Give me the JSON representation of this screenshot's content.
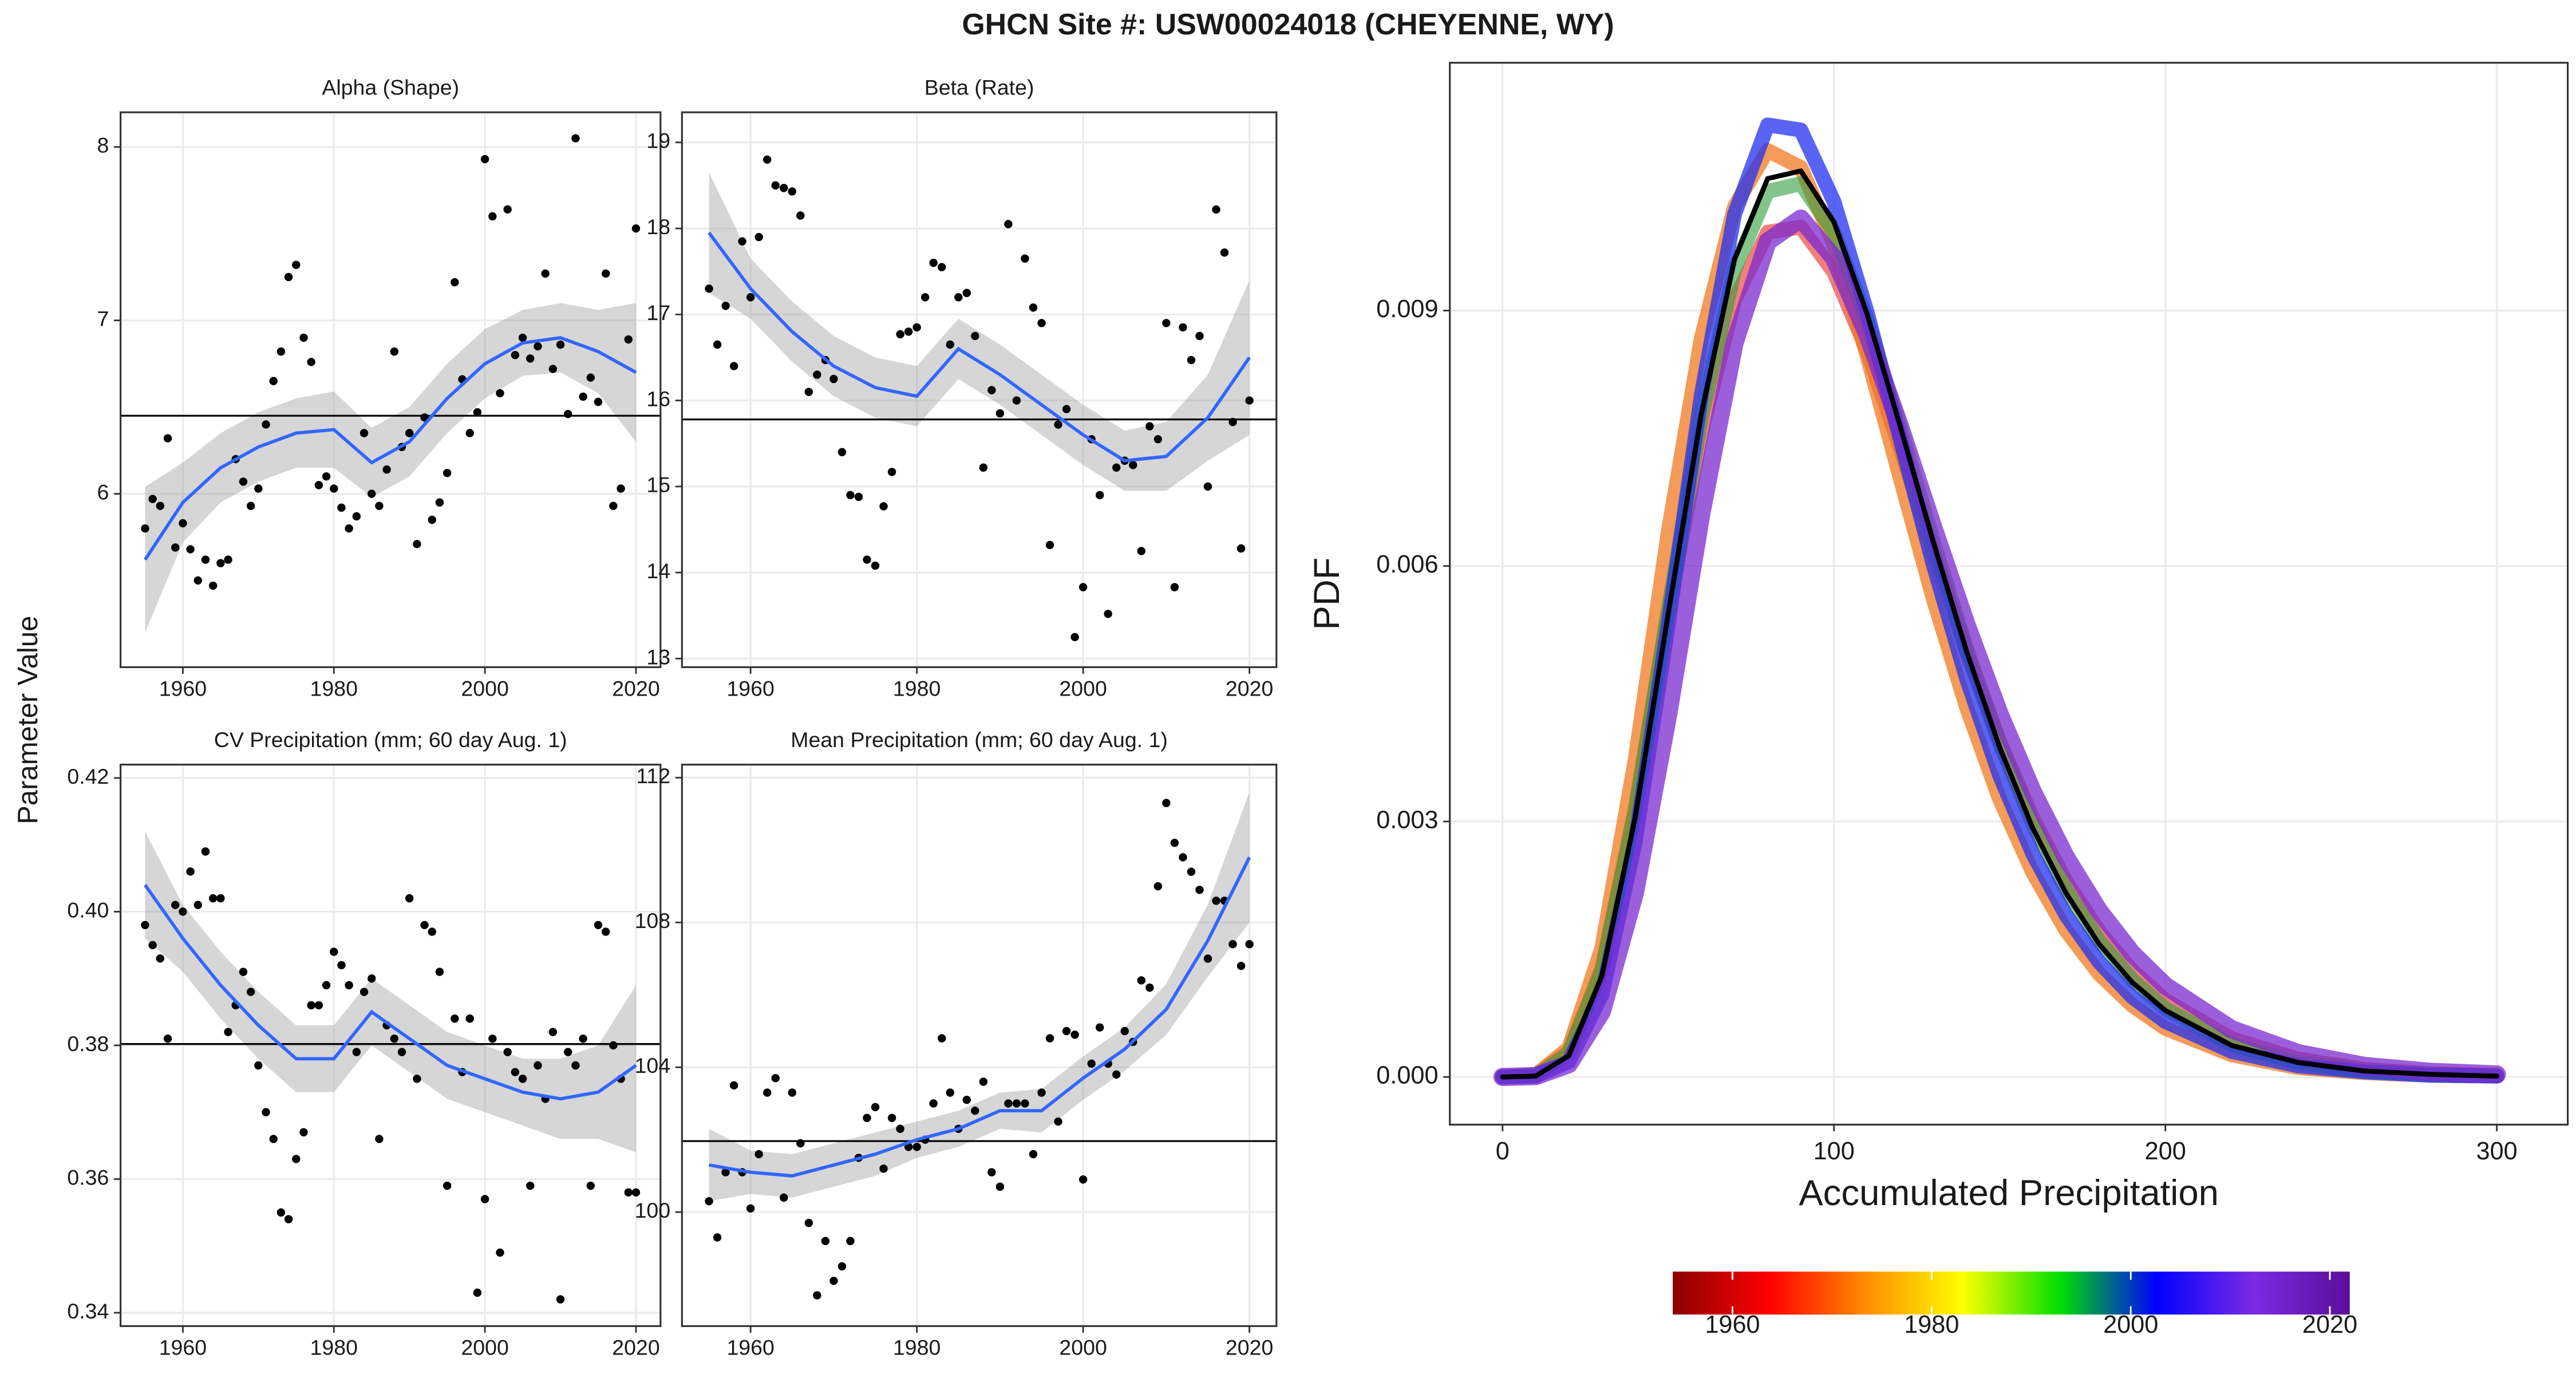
{
  "title": "GHCN Site #: USW00024018 (CHEYENNE, WY)",
  "y_label": "Parameter Value",
  "chart_data": [
    {
      "type": "scatter",
      "title": "Alpha (Shape)",
      "x": [
        1955,
        1956,
        1957,
        1958,
        1959,
        1960,
        1961,
        1962,
        1963,
        1964,
        1965,
        1966,
        1967,
        1968,
        1969,
        1970,
        1971,
        1972,
        1973,
        1974,
        1975,
        1976,
        1977,
        1978,
        1979,
        1980,
        1981,
        1982,
        1983,
        1984,
        1985,
        1986,
        1987,
        1988,
        1989,
        1990,
        1991,
        1992,
        1993,
        1994,
        1995,
        1996,
        1997,
        1998,
        1999,
        2000,
        2001,
        2002,
        2003,
        2004,
        2005,
        2006,
        2007,
        2008,
        2009,
        2010,
        2011,
        2012,
        2013,
        2014,
        2015,
        2016,
        2017,
        2018,
        2019,
        2020
      ],
      "values": [
        5.8,
        5.97,
        5.93,
        6.32,
        5.69,
        5.83,
        5.68,
        5.5,
        5.62,
        5.47,
        5.6,
        5.62,
        6.2,
        6.07,
        5.93,
        6.03,
        6.4,
        6.65,
        6.82,
        7.25,
        7.32,
        6.9,
        6.76,
        6.05,
        6.1,
        6.03,
        5.92,
        5.8,
        5.87,
        6.35,
        6.0,
        5.93,
        6.14,
        6.82,
        6.27,
        6.35,
        5.71,
        6.44,
        5.85,
        5.95,
        6.12,
        7.22,
        6.66,
        6.35,
        6.47,
        7.93,
        7.6,
        6.58,
        7.64,
        6.8,
        6.9,
        6.78,
        6.85,
        7.27,
        6.72,
        6.86,
        6.46,
        8.05,
        6.56,
        6.67,
        6.53,
        7.27,
        5.93,
        6.03,
        6.89,
        7.53
      ],
      "color": "#000000",
      "smooth": {
        "x": [
          1955,
          1960,
          1965,
          1970,
          1975,
          1980,
          1985,
          1990,
          1995,
          2000,
          2005,
          2010,
          2015,
          2020
        ],
        "values": [
          5.62,
          5.95,
          6.15,
          6.27,
          6.35,
          6.37,
          6.18,
          6.3,
          6.55,
          6.75,
          6.87,
          6.9,
          6.82,
          6.7
        ],
        "lower": [
          5.2,
          5.72,
          5.95,
          6.07,
          6.15,
          6.15,
          5.98,
          6.1,
          6.35,
          6.55,
          6.68,
          6.7,
          6.58,
          6.3
        ],
        "upper": [
          6.04,
          6.18,
          6.35,
          6.47,
          6.55,
          6.59,
          6.38,
          6.5,
          6.75,
          6.95,
          7.06,
          7.1,
          7.06,
          7.1
        ],
        "color": "#3366ff",
        "band_color": "#999999"
      },
      "hline": 6.45,
      "hline_color": "#000000",
      "xlim": [
        1951.75,
        2023.25
      ],
      "ylim": [
        5.0,
        8.2
      ],
      "xticks": [
        1960,
        1980,
        2000,
        2020
      ],
      "yticks": [
        6,
        7,
        8
      ],
      "grid": true
    },
    {
      "type": "scatter",
      "title": "Beta (Rate)",
      "x": [
        1955,
        1956,
        1957,
        1958,
        1959,
        1960,
        1961,
        1962,
        1963,
        1964,
        1965,
        1966,
        1967,
        1968,
        1969,
        1970,
        1971,
        1972,
        1973,
        1974,
        1975,
        1976,
        1977,
        1978,
        1979,
        1980,
        1981,
        1982,
        1983,
        1984,
        1985,
        1986,
        1987,
        1988,
        1989,
        1990,
        1991,
        1992,
        1993,
        1994,
        1995,
        1996,
        1997,
        1998,
        1999,
        2000,
        2001,
        2002,
        2003,
        2004,
        2005,
        2006,
        2007,
        2008,
        2009,
        2010,
        2011,
        2012,
        2013,
        2014,
        2015,
        2016,
        2017,
        2018,
        2019,
        2020
      ],
      "values": [
        17.3,
        16.65,
        17.1,
        16.4,
        17.85,
        17.2,
        17.9,
        18.8,
        18.5,
        18.47,
        18.43,
        18.15,
        16.1,
        16.3,
        16.47,
        16.25,
        15.4,
        14.9,
        14.88,
        14.15,
        14.08,
        14.77,
        15.17,
        16.77,
        16.8,
        16.85,
        17.2,
        17.6,
        17.55,
        16.65,
        17.2,
        17.25,
        16.75,
        15.22,
        16.12,
        15.85,
        18.05,
        16.0,
        17.65,
        17.08,
        16.9,
        14.32,
        15.72,
        15.9,
        13.25,
        13.83,
        15.55,
        14.9,
        13.52,
        15.22,
        15.3,
        15.25,
        14.25,
        15.7,
        15.55,
        16.9,
        13.83,
        16.85,
        16.47,
        16.75,
        15.0,
        18.22,
        17.72,
        15.75,
        14.28,
        16.0
      ],
      "color": "#000000",
      "smooth": {
        "x": [
          1955,
          1960,
          1965,
          1970,
          1975,
          1980,
          1985,
          1990,
          1995,
          2000,
          2005,
          2010,
          2015,
          2020
        ],
        "values": [
          17.95,
          17.3,
          16.8,
          16.4,
          16.15,
          16.05,
          16.6,
          16.3,
          15.95,
          15.6,
          15.3,
          15.35,
          15.8,
          16.5
        ],
        "lower": [
          17.25,
          16.95,
          16.45,
          16.05,
          15.8,
          15.7,
          16.25,
          15.95,
          15.6,
          15.25,
          14.95,
          14.95,
          15.3,
          15.6
        ],
        "upper": [
          18.65,
          17.65,
          17.15,
          16.75,
          16.5,
          16.4,
          16.95,
          16.65,
          16.3,
          15.95,
          15.65,
          15.75,
          16.3,
          17.4
        ],
        "color": "#3366ff",
        "band_color": "#999999"
      },
      "hline": 15.78,
      "hline_color": "#000000",
      "xlim": [
        1951.75,
        2023.25
      ],
      "ylim": [
        12.9,
        19.35
      ],
      "xticks": [
        1960,
        1980,
        2000,
        2020
      ],
      "yticks": [
        13,
        14,
        15,
        16,
        17,
        18,
        19
      ],
      "grid": true
    },
    {
      "type": "scatter",
      "title": "CV Precipitation (mm; 60 day Aug. 1)",
      "x": [
        1955,
        1956,
        1957,
        1958,
        1959,
        1960,
        1961,
        1962,
        1963,
        1964,
        1965,
        1966,
        1967,
        1968,
        1969,
        1970,
        1971,
        1972,
        1973,
        1974,
        1975,
        1976,
        1977,
        1978,
        1979,
        1980,
        1981,
        1982,
        1983,
        1984,
        1985,
        1986,
        1987,
        1988,
        1989,
        1990,
        1991,
        1992,
        1993,
        1994,
        1995,
        1996,
        1997,
        1998,
        1999,
        2000,
        2001,
        2002,
        2003,
        2004,
        2005,
        2006,
        2007,
        2008,
        2009,
        2010,
        2011,
        2012,
        2013,
        2014,
        2015,
        2016,
        2017,
        2018,
        2019,
        2020
      ],
      "values": [
        0.398,
        0.395,
        0.393,
        0.381,
        0.401,
        0.4,
        0.406,
        0.401,
        0.409,
        0.402,
        0.402,
        0.382,
        0.386,
        0.391,
        0.388,
        0.377,
        0.37,
        0.366,
        0.355,
        0.354,
        0.363,
        0.367,
        0.386,
        0.386,
        0.389,
        0.394,
        0.392,
        0.389,
        0.379,
        0.388,
        0.39,
        0.366,
        0.383,
        0.381,
        0.379,
        0.402,
        0.375,
        0.398,
        0.397,
        0.391,
        0.359,
        0.384,
        0.376,
        0.384,
        0.343,
        0.357,
        0.381,
        0.349,
        0.379,
        0.376,
        0.375,
        0.359,
        0.377,
        0.372,
        0.382,
        0.342,
        0.379,
        0.377,
        0.381,
        0.359,
        0.398,
        0.397,
        0.38,
        0.375,
        0.358,
        0.358
      ],
      "color": "#000000",
      "smooth": {
        "x": [
          1955,
          1960,
          1965,
          1970,
          1975,
          1980,
          1985,
          1990,
          1995,
          2000,
          2005,
          2010,
          2015,
          2020
        ],
        "values": [
          0.404,
          0.396,
          0.389,
          0.383,
          0.378,
          0.378,
          0.385,
          0.381,
          0.377,
          0.375,
          0.373,
          0.372,
          0.373,
          0.377
        ],
        "lower": [
          0.396,
          0.391,
          0.384,
          0.378,
          0.373,
          0.373,
          0.38,
          0.376,
          0.372,
          0.37,
          0.368,
          0.366,
          0.366,
          0.364
        ],
        "upper": [
          0.412,
          0.401,
          0.394,
          0.388,
          0.383,
          0.383,
          0.39,
          0.386,
          0.382,
          0.38,
          0.378,
          0.378,
          0.38,
          0.389
        ],
        "color": "#3366ff",
        "band_color": "#999999"
      },
      "hline": 0.3802,
      "hline_color": "#000000",
      "xlim": [
        1951.75,
        2023.25
      ],
      "ylim": [
        0.338,
        0.422
      ],
      "xticks": [
        1960,
        1980,
        2000,
        2020
      ],
      "yticks": [
        0.34,
        0.36,
        0.38,
        {
          "value": 0.4,
          "label": "0.40"
        },
        0.42
      ],
      "grid": true
    },
    {
      "type": "scatter",
      "title": "Mean Precipitation (mm; 60 day Aug. 1)",
      "x": [
        1955,
        1956,
        1957,
        1958,
        1959,
        1960,
        1961,
        1962,
        1963,
        1964,
        1965,
        1966,
        1967,
        1968,
        1969,
        1970,
        1971,
        1972,
        1973,
        1974,
        1975,
        1976,
        1977,
        1978,
        1979,
        1980,
        1981,
        1982,
        1983,
        1984,
        1985,
        1986,
        1987,
        1988,
        1989,
        1990,
        1991,
        1992,
        1993,
        1994,
        1995,
        1996,
        1997,
        1998,
        1999,
        2000,
        2001,
        2002,
        2003,
        2004,
        2005,
        2006,
        2007,
        2008,
        2009,
        2010,
        2011,
        2012,
        2013,
        2014,
        2015,
        2016,
        2017,
        2018,
        2019,
        2020
      ],
      "values": [
        100.3,
        99.3,
        101.1,
        103.5,
        101.1,
        100.1,
        101.6,
        103.3,
        103.7,
        100.4,
        103.3,
        101.9,
        99.7,
        97.7,
        99.2,
        98.1,
        98.5,
        99.2,
        101.5,
        102.6,
        102.9,
        101.2,
        102.6,
        102.3,
        101.8,
        101.8,
        102.0,
        103.0,
        104.8,
        103.3,
        102.3,
        103.1,
        102.8,
        103.6,
        101.1,
        100.7,
        103.0,
        103.0,
        103.0,
        101.6,
        103.3,
        104.8,
        102.5,
        105.0,
        104.9,
        100.9,
        104.1,
        105.1,
        104.1,
        103.8,
        105.0,
        104.7,
        106.4,
        106.2,
        109.0,
        111.3,
        110.2,
        109.8,
        109.4,
        108.9,
        107.0,
        108.6,
        108.6,
        107.4,
        106.8,
        107.4
      ],
      "color": "#000000",
      "smooth": {
        "x": [
          1955,
          1960,
          1965,
          1970,
          1975,
          1980,
          1985,
          1990,
          1995,
          2000,
          2005,
          2010,
          2015,
          2020
        ],
        "values": [
          101.3,
          101.1,
          101.0,
          101.3,
          101.6,
          102.0,
          102.3,
          102.8,
          102.8,
          103.7,
          104.5,
          105.6,
          107.5,
          109.8
        ],
        "lower": [
          100.3,
          100.5,
          100.4,
          100.7,
          101.0,
          101.5,
          101.8,
          102.3,
          102.2,
          103.1,
          103.9,
          104.9,
          106.5,
          108.0
        ],
        "upper": [
          102.3,
          101.7,
          101.6,
          101.9,
          102.2,
          102.5,
          102.8,
          103.3,
          103.4,
          104.3,
          105.1,
          106.3,
          108.5,
          111.6
        ],
        "color": "#3366ff",
        "band_color": "#999999"
      },
      "hline": 101.96,
      "hline_color": "#000000",
      "xlim": [
        1951.75,
        2023.25
      ],
      "ylim": [
        96.85,
        112.36
      ],
      "xticks": [
        1960,
        1980,
        2000,
        2020
      ],
      "yticks": [
        100,
        104,
        108,
        112
      ],
      "grid": true
    },
    {
      "type": "line",
      "x_label": "Accumulated Precipitation",
      "y_label": "PDF",
      "x": [
        0,
        10,
        20,
        30,
        40,
        50,
        60,
        70,
        80,
        90,
        100,
        110,
        120,
        130,
        140,
        150,
        160,
        170,
        180,
        190,
        200,
        220,
        240,
        260,
        280,
        300
      ],
      "series": [
        {
          "color": "#e8140c",
          "width": 9,
          "opacity": 0.55,
          "values": [
            0,
            2e-05,
            0.0003,
            0.00128,
            0.00314,
            0.00545,
            0.00757,
            0.00912,
            0.00992,
            0.00998,
            0.00945,
            0.00853,
            0.00738,
            0.00616,
            0.00499,
            0.00394,
            0.00304,
            0.0023,
            0.00171,
            0.00125,
            0.0009,
            0.00045,
            0.00021,
            9e-05,
            4e-05,
            2e-05
          ]
        },
        {
          "color": "#f07a22",
          "width": 9,
          "opacity": 0.75,
          "values": [
            0,
            2e-05,
            0.00034,
            0.00152,
            0.00372,
            0.0064,
            0.00868,
            0.01022,
            0.01088,
            0.01068,
            0.00978,
            0.00847,
            0.00703,
            0.00561,
            0.00434,
            0.00326,
            0.0024,
            0.00172,
            0.00121,
            0.00084,
            0.00057,
            0.00026,
            0.00011,
            5e-05,
            2e-05,
            1e-05
          ]
        },
        {
          "color": "#2e9c3c",
          "width": 9,
          "opacity": 0.6,
          "values": [
            0,
            1e-05,
            0.00027,
            0.00125,
            0.00312,
            0.00548,
            0.00775,
            0.00948,
            0.0104,
            0.01049,
            0.00992,
            0.00889,
            0.00762,
            0.00629,
            0.00503,
            0.00392,
            0.00297,
            0.0022,
            0.0016,
            0.00114,
            0.0008,
            0.00038,
            0.00017,
            7e-05,
            3e-05,
            1e-05
          ]
        },
        {
          "color": "#2230f0",
          "width": 9,
          "opacity": 0.75,
          "values": [
            0,
            1e-05,
            0.00018,
            0.00097,
            0.00275,
            0.00531,
            0.00801,
            0.01013,
            0.01118,
            0.01112,
            0.01028,
            0.00898,
            0.00749,
            0.00601,
            0.00468,
            0.00354,
            0.00262,
            0.0019,
            0.00135,
            0.00094,
            0.00065,
            0.0003,
            0.00013,
            6e-05,
            2e-05,
            1e-05
          ]
        },
        {
          "color": "#7a2ad0",
          "width": 11,
          "opacity": 0.75,
          "values": [
            0,
            1e-05,
            0.00015,
            0.00077,
            0.00217,
            0.00426,
            0.00662,
            0.00862,
            0.00981,
            0.01008,
            0.00962,
            0.00873,
            0.00763,
            0.00645,
            0.00531,
            0.00426,
            0.00335,
            0.00258,
            0.00195,
            0.00145,
            0.00107,
            0.00056,
            0.00028,
            0.00013,
            6e-05,
            3e-05
          ]
        },
        {
          "color": "#000000",
          "width": 3,
          "opacity": 1,
          "values": [
            0,
            1e-05,
            0.00025,
            0.00119,
            0.00304,
            0.00544,
            0.00779,
            0.0096,
            0.01055,
            0.01064,
            0.01004,
            0.00896,
            0.00764,
            0.00628,
            0.005,
            0.00387,
            0.00292,
            0.00216,
            0.00156,
            0.00111,
            0.00078,
            0.00037,
            0.00017,
            7e-05,
            3e-05,
            1e-05
          ]
        }
      ],
      "xlim": [
        -15.9,
        321.4
      ],
      "ylim": [
        -0.00056,
        0.01191
      ],
      "xticks": [
        0,
        100,
        200,
        300
      ],
      "yticks": [
        {
          "value": 0,
          "label": "0.000"
        },
        {
          "value": 0.003,
          "label": "0.003"
        },
        {
          "value": 0.006,
          "label": "0.006"
        },
        {
          "value": 0.009,
          "label": "0.009"
        }
      ],
      "grid": true,
      "colorbar": {
        "lim": [
          1954,
          2022
        ],
        "ticks": [
          1960,
          1980,
          2000,
          2020
        ],
        "colors": [
          "#8b0000",
          "#ff0000",
          "#ff8c00",
          "#ffff00",
          "#00e000",
          "#0000ff",
          "#7b2be2",
          "#5a0f9a"
        ]
      }
    }
  ]
}
